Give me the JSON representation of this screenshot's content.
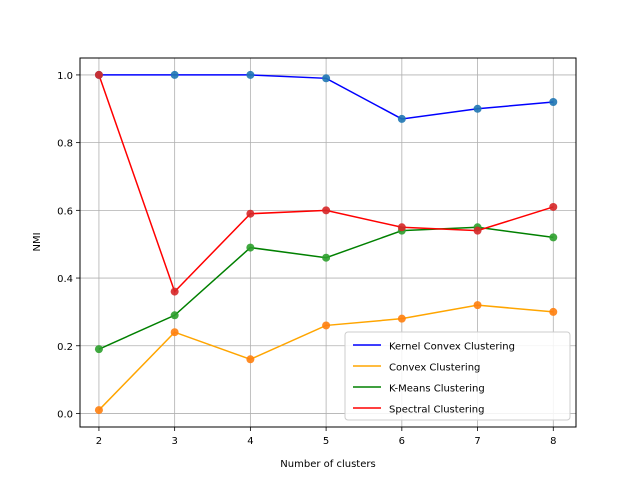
{
  "chart_data": {
    "type": "line",
    "title": "",
    "xlabel": "Number of clusters",
    "ylabel": "NMI",
    "x": [
      2,
      3,
      4,
      5,
      6,
      7,
      8
    ],
    "xlim": [
      1.75,
      8.3
    ],
    "ylim": [
      -0.04,
      1.05
    ],
    "xticks": [
      "2",
      "3",
      "4",
      "5",
      "6",
      "7",
      "8"
    ],
    "yticks": [
      "0.0",
      "0.2",
      "0.4",
      "0.6",
      "0.8",
      "1.0"
    ],
    "grid": true,
    "legend_position": "bottom-right",
    "series": [
      {
        "name": "Kernel Convex Clustering",
        "color": "#0000ff",
        "marker_color": "#1f77b4",
        "values": [
          1.0,
          1.0,
          1.0,
          0.99,
          0.87,
          0.9,
          0.92
        ]
      },
      {
        "name": "Convex Clustering",
        "color": "#ffa500",
        "marker_color": "#ff7f0e",
        "values": [
          0.01,
          0.24,
          0.16,
          0.26,
          0.28,
          0.32,
          0.3
        ]
      },
      {
        "name": "K-Means Clustering",
        "color": "#008000",
        "marker_color": "#2ca02c",
        "values": [
          0.19,
          0.29,
          0.49,
          0.46,
          0.54,
          0.55,
          0.52
        ]
      },
      {
        "name": "Spectral Clustering",
        "color": "#ff0000",
        "marker_color": "#d62728",
        "values": [
          1.0,
          0.36,
          0.59,
          0.6,
          0.55,
          0.54,
          0.61
        ]
      }
    ]
  }
}
